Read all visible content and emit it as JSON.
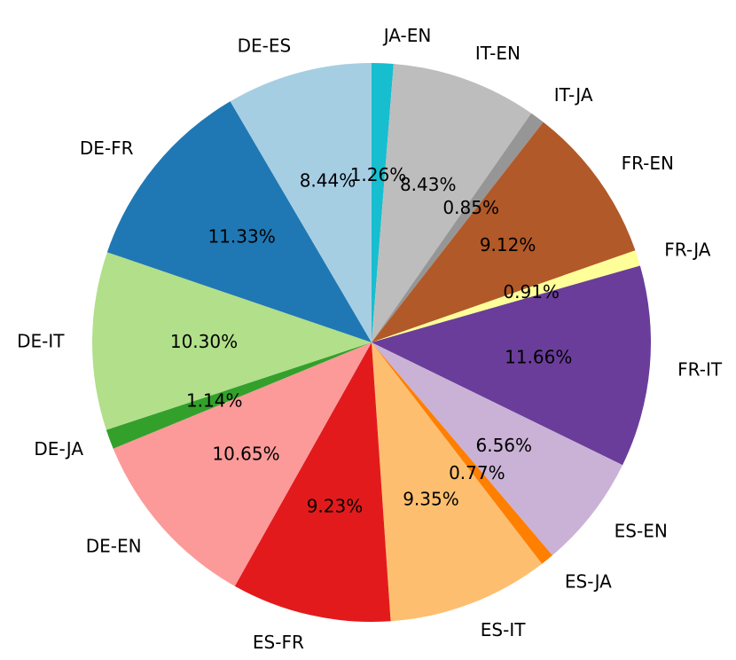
{
  "chart_data": {
    "type": "pie",
    "title": "",
    "start_angle_deg": 90,
    "direction": "clockwise",
    "slices": [
      {
        "label": "JA-EN",
        "value": 1.26,
        "pct_label": "1.26%",
        "color": "#17becf"
      },
      {
        "label": "IT-EN",
        "value": 8.43,
        "pct_label": "8.43%",
        "color": "#bdbdbd"
      },
      {
        "label": "IT-JA",
        "value": 0.85,
        "pct_label": "0.85%",
        "color": "#969696"
      },
      {
        "label": "FR-EN",
        "value": 9.12,
        "pct_label": "9.12%",
        "color": "#b15928"
      },
      {
        "label": "FR-JA",
        "value": 0.91,
        "pct_label": "0.91%",
        "color": "#ffff99"
      },
      {
        "label": "FR-IT",
        "value": 11.66,
        "pct_label": "11.66%",
        "color": "#6a3d9a"
      },
      {
        "label": "ES-EN",
        "value": 6.56,
        "pct_label": "6.56%",
        "color": "#cab2d6"
      },
      {
        "label": "ES-JA",
        "value": 0.77,
        "pct_label": "0.77%",
        "color": "#ff7f00"
      },
      {
        "label": "ES-IT",
        "value": 9.35,
        "pct_label": "9.35%",
        "color": "#fdbf6f"
      },
      {
        "label": "ES-FR",
        "value": 9.23,
        "pct_label": "9.23%",
        "color": "#e31a1c"
      },
      {
        "label": "DE-EN",
        "value": 10.65,
        "pct_label": "10.65%",
        "color": "#fb9a99"
      },
      {
        "label": "DE-JA",
        "value": 1.14,
        "pct_label": "1.14%",
        "color": "#33a02c"
      },
      {
        "label": "DE-IT",
        "value": 10.3,
        "pct_label": "10.30%",
        "color": "#b2df8a"
      },
      {
        "label": "DE-FR",
        "value": 11.33,
        "pct_label": "11.33%",
        "color": "#1f78b4"
      },
      {
        "label": "DE-ES",
        "value": 8.44,
        "pct_label": "8.44%",
        "color": "#a6cee3"
      }
    ]
  }
}
